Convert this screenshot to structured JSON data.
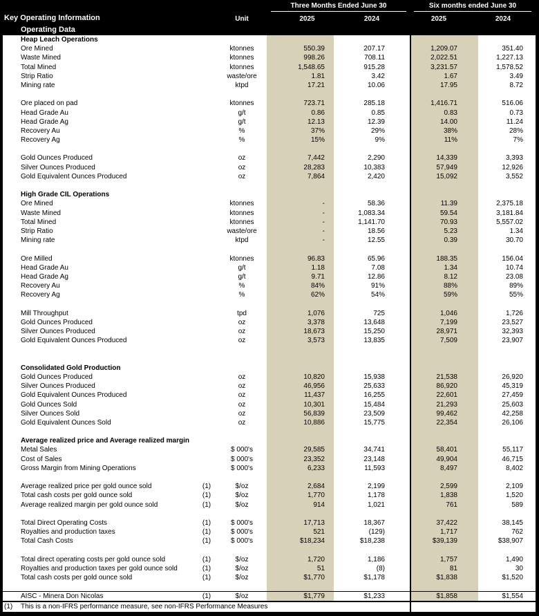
{
  "header": {
    "title": "Key Operating Information",
    "subtitle": "Operating Data",
    "unit_label": "Unit",
    "group1": "Three Months Ended June 30",
    "group2": "Six months ended June 30",
    "years": [
      "2025",
      "2024",
      "2025",
      "2024"
    ]
  },
  "colors": {
    "highlight_2025": "#d8d1ba",
    "header_bg": "#000000",
    "body_bg": "#ffffff"
  },
  "rows": [
    {
      "type": "section",
      "label": "Heap Leach Operations"
    },
    {
      "type": "data",
      "label": "Ore Mined",
      "unit": "ktonnes",
      "values": [
        "550.39",
        "207.17",
        "1,209.07",
        "351.40"
      ]
    },
    {
      "type": "data",
      "label": "Waste Mined",
      "unit": "ktonnes",
      "values": [
        "998.26",
        "708.11",
        "2,022.51",
        "1,227.13"
      ]
    },
    {
      "type": "data",
      "label": "Total Mined",
      "unit": "ktonnes",
      "values": [
        "1,548.65",
        "915.28",
        "3,231.57",
        "1,578.52"
      ]
    },
    {
      "type": "data",
      "label": "Strip Ratio",
      "unit": "waste/ore",
      "values": [
        "1.81",
        "3.42",
        "1.67",
        "3.49"
      ]
    },
    {
      "type": "data",
      "label": "Mining rate",
      "unit": "ktpd",
      "values": [
        "17.21",
        "10.06",
        "17.95",
        "8.72"
      ]
    },
    {
      "type": "blank"
    },
    {
      "type": "data",
      "label": "Ore placed on pad",
      "unit": "ktonnes",
      "values": [
        "723.71",
        "285.18",
        "1,416.71",
        "516.06"
      ]
    },
    {
      "type": "data",
      "label": "Head Grade Au",
      "unit": "g/t",
      "values": [
        "0.86",
        "0.85",
        "0.83",
        "0.73"
      ]
    },
    {
      "type": "data",
      "label": "Head Grade Ag",
      "unit": "g/t",
      "values": [
        "12.13",
        "12.39",
        "14.00",
        "11.24"
      ]
    },
    {
      "type": "data",
      "label": "Recovery Au",
      "unit": "%",
      "values": [
        "37%",
        "29%",
        "38%",
        "28%"
      ]
    },
    {
      "type": "data",
      "label": "Recovery Ag",
      "unit": "%",
      "values": [
        "15%",
        "9%",
        "11%",
        "7%"
      ]
    },
    {
      "type": "blank"
    },
    {
      "type": "data",
      "label": "Gold Ounces Produced",
      "unit": "oz",
      "values": [
        "7,442",
        "2,290",
        "14,339",
        "3,393"
      ]
    },
    {
      "type": "data",
      "label": "Silver Ounces Produced",
      "unit": "oz",
      "values": [
        "28,283",
        "10,383",
        "57,949",
        "12,926"
      ]
    },
    {
      "type": "data",
      "label": "Gold Equivalent Ounces Produced",
      "unit": "oz",
      "values": [
        "7,864",
        "2,420",
        "15,092",
        "3,552"
      ]
    },
    {
      "type": "blank"
    },
    {
      "type": "section",
      "label": "High Grade CIL Operations"
    },
    {
      "type": "data",
      "label": "Ore Mined",
      "unit": "ktonnes",
      "values": [
        "-",
        "58.36",
        "11.39",
        "2,375.18"
      ]
    },
    {
      "type": "data",
      "label": "Waste Mined",
      "unit": "ktonnes",
      "values": [
        "-",
        "1,083.34",
        "59.54",
        "3,181.84"
      ]
    },
    {
      "type": "data",
      "label": "Total Mined",
      "unit": "ktonnes",
      "values": [
        "-",
        "1,141.70",
        "70.93",
        "5,557.02"
      ]
    },
    {
      "type": "data",
      "label": "Strip Ratio",
      "unit": "waste/ore",
      "values": [
        "-",
        "18.56",
        "5.23",
        "1.34"
      ]
    },
    {
      "type": "data",
      "label": "Mining rate",
      "unit": "ktpd",
      "values": [
        "-",
        "12.55",
        "0.39",
        "30.70"
      ]
    },
    {
      "type": "blank"
    },
    {
      "type": "data",
      "label": "Ore Milled",
      "unit": "ktonnes",
      "values": [
        "96.83",
        "65.96",
        "188.35",
        "156.04"
      ]
    },
    {
      "type": "data",
      "label": "Head Grade Au",
      "unit": "g/t",
      "values": [
        "1.18",
        "7.08",
        "1.34",
        "10.74"
      ]
    },
    {
      "type": "data",
      "label": "Head Grade Ag",
      "unit": "g/t",
      "values": [
        "9.71",
        "12.86",
        "8.12",
        "23.08"
      ]
    },
    {
      "type": "data",
      "label": "Recovery Au",
      "unit": "%",
      "values": [
        "84%",
        "91%",
        "88%",
        "89%"
      ]
    },
    {
      "type": "data",
      "label": "Recovery Ag",
      "unit": "%",
      "values": [
        "62%",
        "54%",
        "59%",
        "55%"
      ]
    },
    {
      "type": "blank"
    },
    {
      "type": "data",
      "label": "Mill Throughput",
      "unit": "tpd",
      "values": [
        "1,076",
        "725",
        "1,046",
        "1,726"
      ]
    },
    {
      "type": "data",
      "label": "Gold Ounces Produced",
      "unit": "oz",
      "values": [
        "3,378",
        "13,648",
        "7,199",
        "23,527"
      ]
    },
    {
      "type": "data",
      "label": "Silver Ounces Produced",
      "unit": "oz",
      "values": [
        "18,673",
        "15,250",
        "28,971",
        "32,393"
      ]
    },
    {
      "type": "data",
      "label": "Gold Equivalent Ounces Produced",
      "unit": "oz",
      "values": [
        "3,573",
        "13,835",
        "7,509",
        "23,907"
      ]
    },
    {
      "type": "blank"
    },
    {
      "type": "blank"
    },
    {
      "type": "section",
      "label": "Consolidated Gold Production"
    },
    {
      "type": "data",
      "label": "Gold Ounces Produced",
      "unit": "oz",
      "values": [
        "10,820",
        "15,938",
        "21,538",
        "26,920"
      ]
    },
    {
      "type": "data",
      "label": "Silver Ounces Produced",
      "unit": "oz",
      "values": [
        "46,956",
        "25,633",
        "86,920",
        "45,319"
      ]
    },
    {
      "type": "data",
      "label": "Gold Equivalent Ounces Produced",
      "unit": "oz",
      "values": [
        "11,437",
        "16,255",
        "22,601",
        "27,459"
      ]
    },
    {
      "type": "data",
      "label": "Gold Ounces Sold",
      "unit": "oz",
      "values": [
        "10,301",
        "15,484",
        "21,293",
        "25,603"
      ]
    },
    {
      "type": "data",
      "label": "Silver Ounces Sold",
      "unit": "oz",
      "values": [
        "56,839",
        "23,509",
        "99,462",
        "42,258"
      ]
    },
    {
      "type": "data",
      "label": "Gold Equivalent Ounces Sold",
      "unit": "oz",
      "values": [
        "10,886",
        "15,775",
        "22,354",
        "26,106"
      ]
    },
    {
      "type": "blank"
    },
    {
      "type": "section",
      "label": "Average realized price and Average realized margin"
    },
    {
      "type": "data",
      "label": "Metal Sales",
      "unit": "$ 000's",
      "values": [
        "29,585",
        "34,741",
        "58,401",
        "55,117"
      ]
    },
    {
      "type": "data",
      "label": "Cost of Sales",
      "unit": "$ 000's",
      "values": [
        "23,352",
        "23,148",
        "49,904",
        "46,715"
      ]
    },
    {
      "type": "data",
      "label": "Gross Margin from Mining Operations",
      "unit": "$ 000's",
      "values": [
        "6,233",
        "11,593",
        "8,497",
        "8,402"
      ]
    },
    {
      "type": "blank"
    },
    {
      "type": "data",
      "label": "Average realized price per gold ounce sold",
      "note": "(1)",
      "unit": "$/oz",
      "values": [
        "2,684",
        "2,199",
        "2,599",
        "2,109"
      ]
    },
    {
      "type": "data",
      "label": "Total cash costs per gold ounce sold",
      "note": "(1)",
      "unit": "$/oz",
      "values": [
        "1,770",
        "1,178",
        "1,838",
        "1,520"
      ]
    },
    {
      "type": "data",
      "label": "Average realized margin per gold ounce sold",
      "note": "(1)",
      "unit": "$/oz",
      "values": [
        "914",
        "1,021",
        "761",
        "589"
      ]
    },
    {
      "type": "blank"
    },
    {
      "type": "data",
      "label": "Total Direct Operating Costs",
      "note": "(1)",
      "unit": "$ 000's",
      "values": [
        "17,713",
        "18,367",
        "37,422",
        "38,145"
      ]
    },
    {
      "type": "data",
      "label": "Royalties and production taxes",
      "note": "(1)",
      "unit": "$ 000's",
      "values": [
        "521",
        "(129)",
        "1,717",
        "762"
      ]
    },
    {
      "type": "data",
      "label": "Total Cash Costs",
      "note": "(1)",
      "unit": "$ 000's",
      "values": [
        "$18,234",
        "$18,238",
        "$39,139",
        "$38,907"
      ]
    },
    {
      "type": "blank"
    },
    {
      "type": "data",
      "label": "Total direct operating costs per gold ounce sold",
      "note": "(1)",
      "unit": "$/oz",
      "values": [
        "1,720",
        "1,186",
        "1,757",
        "1,490"
      ]
    },
    {
      "type": "data",
      "label": "Royalties and production taxes per gold ounce sold",
      "note": "(1)",
      "unit": "$/oz",
      "values": [
        "51",
        "(8)",
        "81",
        "30"
      ]
    },
    {
      "type": "data",
      "label": "Total cash costs per gold ounce sold",
      "note": "(1)",
      "unit": "$/oz",
      "values": [
        "$1,770",
        "$1,178",
        "$1,838",
        "$1,520"
      ]
    },
    {
      "type": "blank"
    },
    {
      "type": "data",
      "label": "AISC - Minera Don Nicolas",
      "note": "(1)",
      "unit": "$/oz",
      "values": [
        "$1,779",
        "$1,233",
        "$1,858",
        "$1,554"
      ],
      "topline": true
    }
  ],
  "footnote": {
    "marker": "(1)",
    "text": "This is a non-IFRS performance measure, see non-IFRS Performance Measures"
  }
}
